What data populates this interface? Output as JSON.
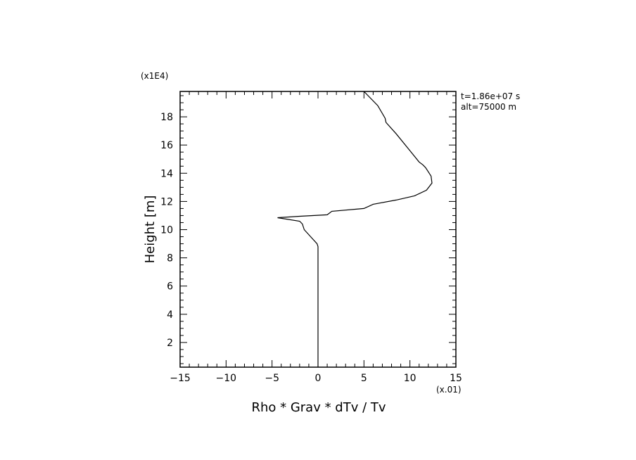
{
  "chart_data": {
    "type": "line",
    "xlabel": "Rho * Grav * dTv / Tv",
    "ylabel": "Height [m]",
    "x_multiplier_label": "(x.01)",
    "y_multiplier_label": "(x1E4)",
    "annotations": [
      "t=1.86e+07 s",
      "alt=75000 m"
    ],
    "xlim": [
      -15,
      15
    ],
    "ylim": [
      0.25,
      19.8
    ],
    "xticks": [
      -15,
      -10,
      -5,
      0,
      5,
      10,
      15
    ],
    "yticks": [
      2,
      4,
      6,
      8,
      10,
      12,
      14,
      16,
      18
    ],
    "grid": false,
    "line_color": "#000000",
    "series": [
      {
        "x": [
          0.0,
          0.0,
          0.0,
          -0.1,
          -0.8,
          -1.5,
          -1.7,
          -2.0,
          -4.4,
          -2.0,
          1.0,
          1.5,
          5.0,
          6.0,
          8.5,
          10.5,
          11.8,
          12.4,
          12.3,
          11.7,
          11.4,
          11.0,
          10.0,
          8.5,
          7.4,
          7.3,
          6.5,
          5.0
        ],
        "y": [
          0.25,
          4.0,
          8.8,
          9.0,
          9.5,
          10.0,
          10.4,
          10.6,
          10.85,
          10.95,
          11.05,
          11.3,
          11.5,
          11.8,
          12.1,
          12.4,
          12.8,
          13.3,
          13.8,
          14.4,
          14.6,
          14.8,
          15.6,
          16.8,
          17.6,
          17.9,
          18.8,
          19.8
        ]
      }
    ]
  }
}
